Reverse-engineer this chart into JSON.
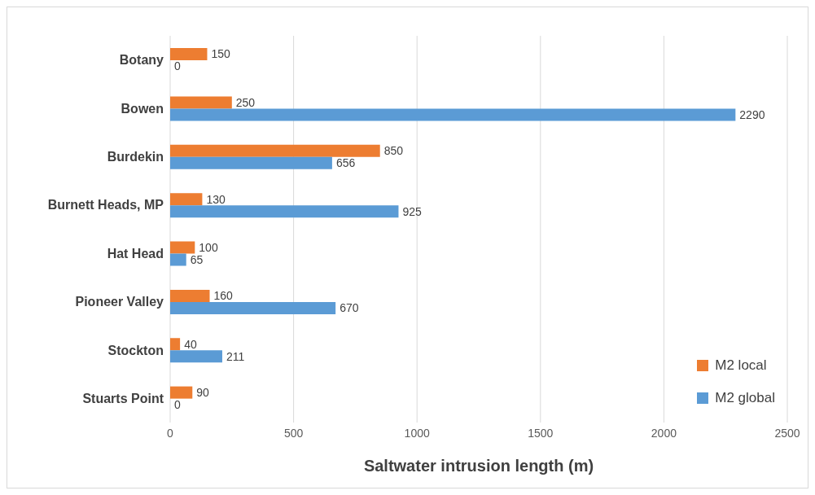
{
  "chart_data": {
    "type": "bar",
    "orientation": "horizontal",
    "xlabel": "Saltwater intrusion length (m)",
    "categories": [
      "Botany",
      "Bowen",
      "Burdekin",
      "Burnett Heads, MP",
      "Hat Head",
      "Pioneer Valley",
      "Stockton",
      "Stuarts Point"
    ],
    "series": [
      {
        "name": "M2 local",
        "color": "#ed7d31",
        "values": [
          150,
          250,
          850,
          130,
          100,
          160,
          40,
          90
        ]
      },
      {
        "name": "M2 global",
        "color": "#5b9bd5",
        "values": [
          0,
          2290,
          656,
          925,
          65,
          670,
          211,
          0
        ]
      }
    ],
    "xlim": [
      0,
      2500
    ],
    "xticks": [
      0,
      500,
      1000,
      1500,
      2000,
      2500
    ],
    "grid": "x",
    "legend": "bottom right",
    "data_labels": true
  }
}
